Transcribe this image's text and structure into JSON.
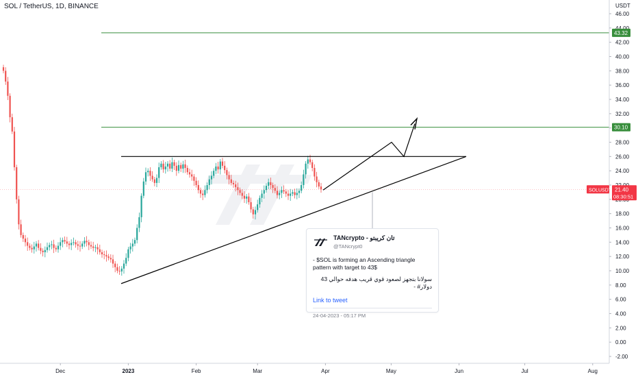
{
  "chart_data": {
    "type": "candlestick",
    "title": "SOL / TetherUS, 1D, BINANCE",
    "currency_label": "USDT",
    "y_ticks": [
      "-2.00",
      "0.00",
      "2.00",
      "4.00",
      "6.00",
      "8.00",
      "10.00",
      "12.00",
      "14.00",
      "16.00",
      "18.00",
      "20.00",
      "22.00",
      "24.00",
      "26.00",
      "28.00",
      "30.00",
      "32.00",
      "34.00",
      "36.00",
      "38.00",
      "40.00",
      "42.00",
      "44.00",
      "46.00"
    ],
    "x_ticks": [
      "Dec",
      "2023",
      "Feb",
      "Mar",
      "Apr",
      "May",
      "Jun",
      "Jul",
      "Aug"
    ],
    "ylim": [
      -2.5,
      47.5
    ],
    "up_color": "#26a69a",
    "down_color": "#ef5350",
    "series": {
      "start_date": "2022-11-05",
      "closes": [
        38.0,
        36.5,
        34.5,
        31.5,
        29.5,
        24.5,
        20.0,
        16.5,
        15.0,
        14.5,
        14.0,
        13.5,
        13.2,
        13.0,
        13.4,
        13.8,
        13.2,
        12.8,
        12.6,
        12.9,
        13.3,
        13.6,
        13.7,
        13.2,
        13.0,
        13.5,
        14.0,
        14.3,
        14.1,
        13.8,
        13.6,
        13.9,
        14.0,
        13.7,
        13.5,
        13.4,
        13.8,
        14.2,
        14.0,
        13.6,
        13.4,
        13.2,
        13.3,
        13.0,
        12.6,
        12.3,
        12.2,
        12.0,
        11.8,
        11.6,
        11.0,
        10.5,
        10.0,
        9.9,
        10.3,
        11.0,
        11.8,
        13.0,
        13.4,
        13.8,
        14.3,
        16.0,
        17.5,
        20.5,
        22.5,
        23.8,
        24.0,
        23.3,
        22.8,
        22.3,
        23.0,
        24.5,
        25.0,
        24.2,
        24.6,
        25.0,
        24.3,
        25.2,
        24.7,
        24.0,
        24.8,
        24.3,
        24.9,
        24.4,
        23.8,
        23.5,
        23.2,
        22.6,
        22.0,
        21.3,
        20.8,
        20.6,
        21.3,
        22.0,
        22.8,
        23.3,
        24.0,
        24.6,
        24.2,
        25.3,
        24.7,
        24.1,
        23.4,
        22.8,
        22.3,
        22.1,
        21.7,
        21.3,
        20.9,
        20.5,
        20.1,
        20.4,
        19.6,
        18.6,
        17.9,
        18.5,
        19.3,
        20.2,
        20.8,
        21.3,
        21.9,
        22.4,
        22.0,
        21.6,
        21.2,
        20.6,
        20.9,
        21.3,
        21.1,
        20.8,
        20.5,
        20.8,
        21.0,
        20.6,
        20.9,
        21.2,
        22.0,
        23.5,
        25.0,
        25.6,
        25.2,
        24.4,
        23.2,
        22.4,
        21.8,
        21.4
      ],
      "last_price": 21.4
    },
    "levels": [
      {
        "label": "43.32",
        "value": 43.32,
        "color": "#388e3c"
      },
      {
        "label": "30.10",
        "value": 30.1,
        "color": "#388e3c"
      }
    ],
    "symbol_tag": {
      "symbol": "SOLUSDT",
      "price": "21.40",
      "countdown": "08:30:51",
      "color": "#f23645"
    },
    "trendlines": {
      "resistance": [
        [
          0,
          26.0
        ],
        [
          1,
          26.0
        ]
      ],
      "support": [
        [
          0,
          8.2
        ],
        [
          1,
          26.0
        ]
      ],
      "projection": [
        [
          0,
          21.3
        ],
        [
          0.3,
          28.0
        ],
        [
          0.5,
          26.0
        ],
        [
          1,
          31.2
        ]
      ]
    }
  },
  "tweet": {
    "name": "TANcrypto - تان كريبتو",
    "handle": "@TANcrypt0",
    "text_en": "- $SOL is forming an Ascending triangle pattern with target to 43$",
    "text_ar": "سولانا بتجهز لصعود قوي قريب هدفه حوالي 43 دولار# -",
    "link_text": "Link to tweet",
    "timestamp": "24-04-2023 - 05:17 PM"
  }
}
